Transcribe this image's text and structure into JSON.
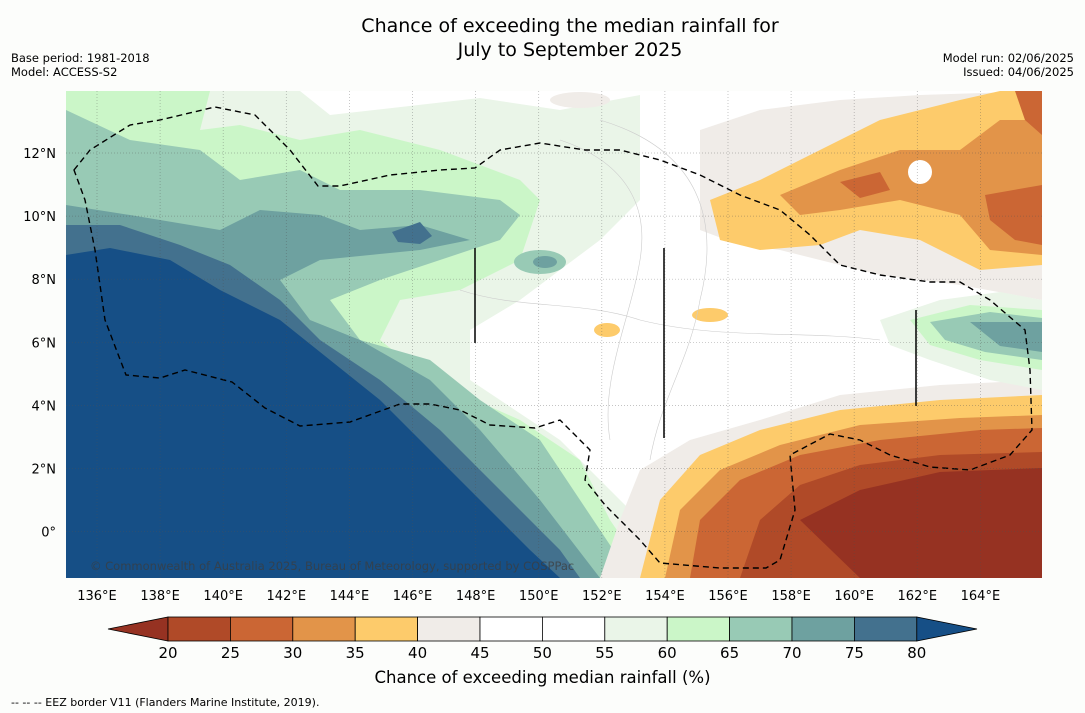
{
  "title_line1": "Chance of exceeding the median rainfall for",
  "title_line2": "July to September 2025",
  "meta": {
    "base_period": "Base period: 1981-2018",
    "model": "Model: ACCESS-S2",
    "model_run": "Model run: 02/06/2025",
    "issued": "Issued: 04/06/2025"
  },
  "map": {
    "lon_labels": [
      "136°E",
      "138°E",
      "140°E",
      "142°E",
      "144°E",
      "146°E",
      "148°E",
      "150°E",
      "152°E",
      "154°E",
      "156°E",
      "158°E",
      "160°E",
      "162°E",
      "164°E"
    ],
    "lat_labels": [
      "12°N",
      "10°N",
      "8°N",
      "6°N",
      "4°N",
      "2°N",
      "0°"
    ],
    "copyright": "© Commonwealth of Australia 2025, Bureau of Meteorology, supported by COSPPac"
  },
  "colorbar": {
    "ticks": [
      "20",
      "25",
      "30",
      "35",
      "40",
      "45",
      "50",
      "55",
      "60",
      "65",
      "70",
      "75",
      "80"
    ],
    "colors": [
      "#963222",
      "#b04a28",
      "#cb6634",
      "#e29449",
      "#fdcb6b",
      "#f0ece8",
      "#ffffff",
      "#ffffff",
      "#eaf5e8",
      "#cbf6c8",
      "#98cab5",
      "#6ea1a0",
      "#43718e",
      "#164f86"
    ],
    "title": "Chance of exceeding median rainfall (%)"
  },
  "footnote": "--  --  -- EEZ border V11 (Flanders Marine Institute, 2019)."
}
